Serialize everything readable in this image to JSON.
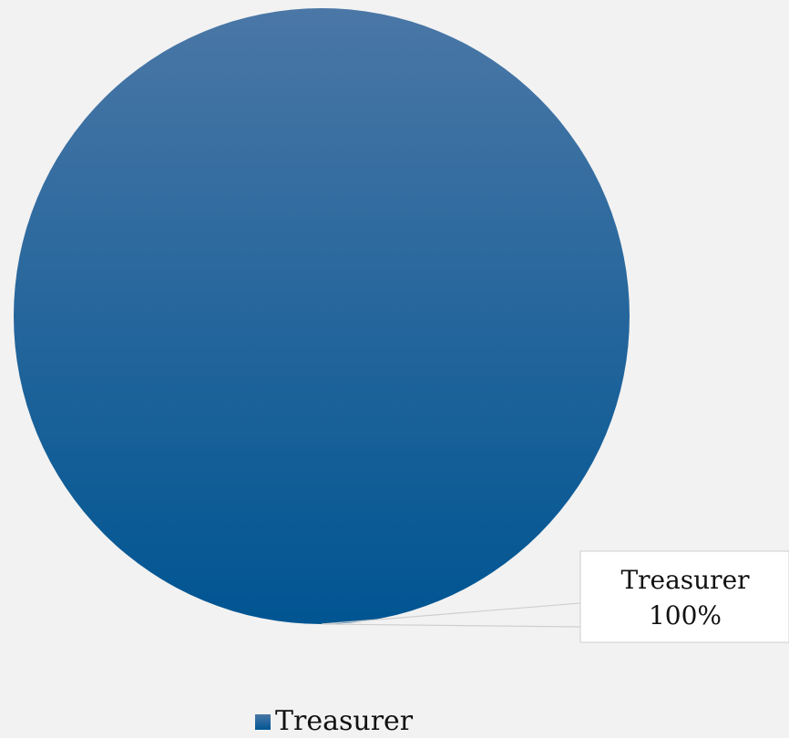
{
  "chart_data": {
    "type": "pie",
    "title": "",
    "slices": [
      {
        "name": "Treasurer",
        "value": 100,
        "percent_label": "100%"
      }
    ],
    "legend": {
      "placement": "bottom",
      "entries": [
        "Treasurer"
      ]
    },
    "colors": {
      "slice_gradient_top": "#4a77a6",
      "slice_gradient_bottom": "#005592",
      "background": "#f2f2f2",
      "label_box_border": "#cfcfcf",
      "leader_line": "#cfcfcf"
    }
  }
}
